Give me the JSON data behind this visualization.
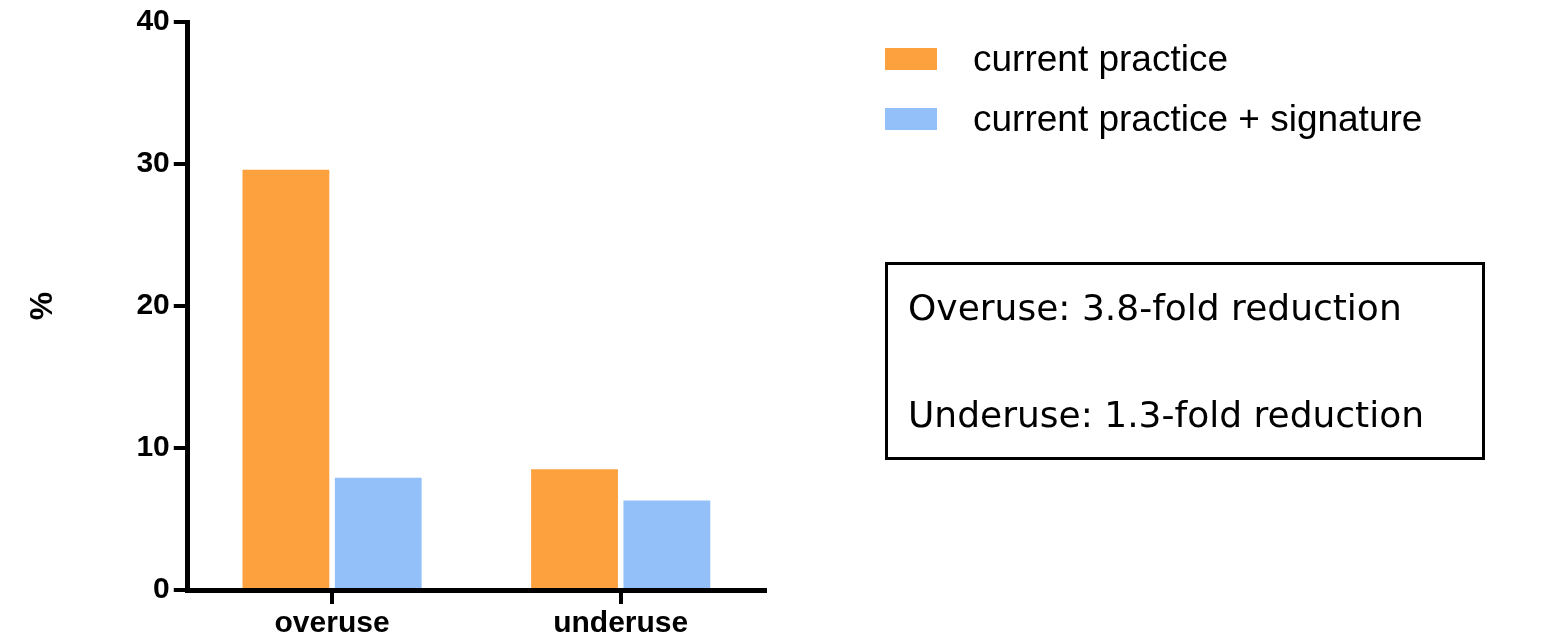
{
  "chart_data": {
    "type": "bar",
    "ylabel": "%",
    "categories": [
      "overuse",
      "underuse"
    ],
    "series": [
      {
        "name": "current practice",
        "color": "#fda13f",
        "values": [
          29.6,
          8.5
        ]
      },
      {
        "name": "current practice + signature",
        "color": "#93c0f8",
        "values": [
          7.9,
          6.3
        ]
      }
    ],
    "ylim": [
      0,
      40
    ],
    "yticks": [
      0,
      10,
      20,
      30,
      40
    ],
    "grid": false,
    "legend": "top right",
    "annotations": [
      "Overuse: 3.8-fold reduction",
      "Underuse: 1.3-fold reduction"
    ]
  }
}
